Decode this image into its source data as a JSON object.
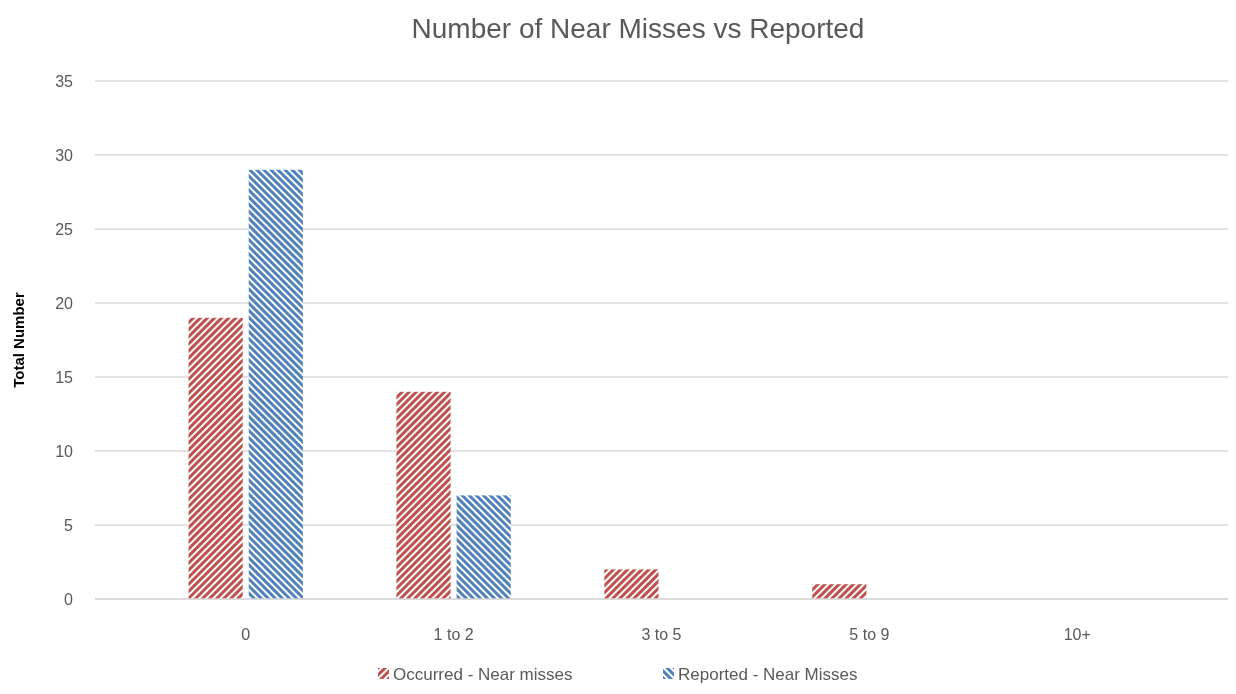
{
  "chart_data": {
    "type": "bar",
    "title": "Number of Near Misses vs Reported",
    "ylabel": "Total Number",
    "categories": [
      "0",
      "1 to 2",
      "3 to 5",
      "5 to 9",
      "10+"
    ],
    "series": [
      {
        "name": "Occurred - Near misses",
        "color": "#c0504d",
        "values": [
          19,
          14,
          2,
          1,
          0
        ]
      },
      {
        "name": "Reported - Near Misses",
        "color": "#4f81bd",
        "values": [
          29,
          7,
          0,
          0,
          0
        ]
      }
    ],
    "ylim": [
      0,
      35
    ],
    "yticks": [
      0,
      5,
      10,
      15,
      20,
      25,
      30,
      35
    ],
    "grid": "y",
    "legend": "bottom"
  }
}
